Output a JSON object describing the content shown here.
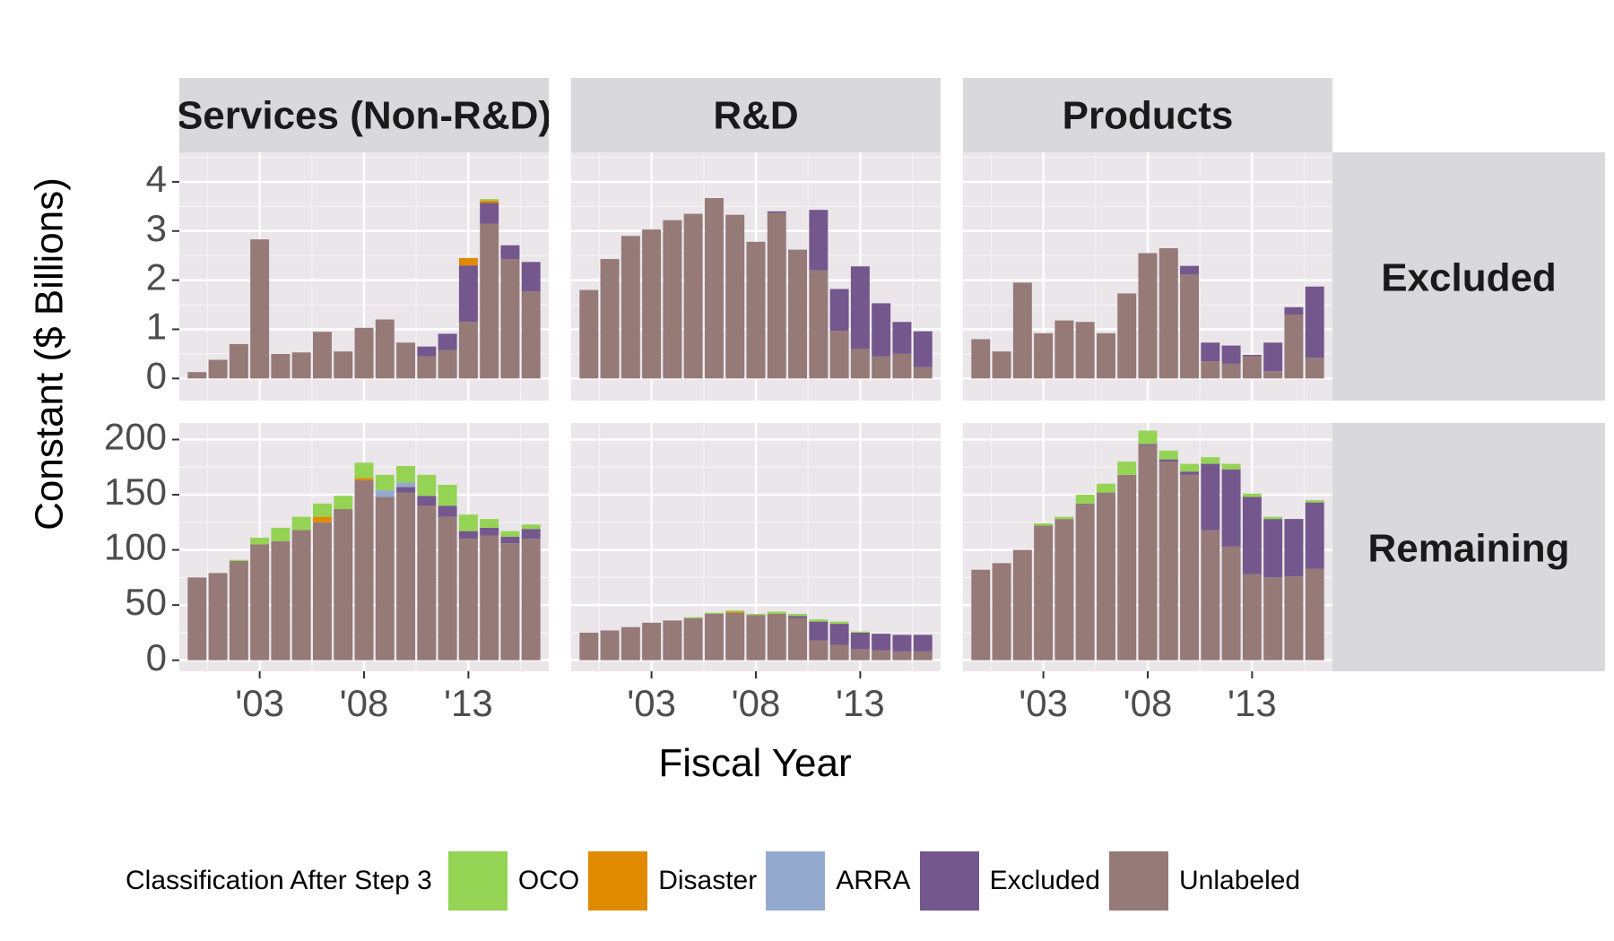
{
  "chart_data": {
    "type": "bar",
    "stacked": true,
    "xlabel": "Fiscal Year",
    "ylabel": "Constant ($ Billions)",
    "x_tick_labels": [
      "'03",
      "'08",
      "'13"
    ],
    "years": [
      2000,
      2001,
      2002,
      2003,
      2004,
      2005,
      2006,
      2007,
      2008,
      2009,
      2010,
      2011,
      2012,
      2013,
      2014,
      2015,
      2016
    ],
    "columns": [
      "Services (Non-R&D)",
      "R&D",
      "Products"
    ],
    "rows": [
      {
        "label": "Excluded",
        "yticks": [
          0,
          1,
          2,
          3,
          4
        ],
        "ylim": [
          -0.45,
          4.6
        ]
      },
      {
        "label": "Remaining",
        "yticks": [
          0,
          50,
          100,
          150,
          200
        ],
        "ylim": [
          -10,
          215
        ]
      }
    ],
    "legend": {
      "title": "Classification After Step 3",
      "placement": "bottom",
      "items": [
        {
          "name": "OCO",
          "color": "#95d354"
        },
        {
          "name": "Disaster",
          "color": "#e08a00"
        },
        {
          "name": "ARRA",
          "color": "#94aacf"
        },
        {
          "name": "Excluded",
          "color": "#74578c"
        },
        {
          "name": "Unlabeled",
          "color": "#957a78"
        }
      ]
    },
    "stack_order": [
      "Unlabeled",
      "Excluded",
      "ARRA",
      "Disaster",
      "OCO"
    ],
    "panels": [
      {
        "row": "Excluded",
        "column": "Services (Non-R&D)",
        "series": [
          {
            "name": "Unlabeled",
            "values": [
              0.13,
              0.38,
              0.7,
              2.83,
              0.5,
              0.53,
              0.95,
              0.55,
              1.03,
              1.2,
              0.73,
              0.45,
              0.58,
              1.15,
              3.15,
              2.43,
              1.77
            ]
          },
          {
            "name": "Excluded",
            "values": [
              0,
              0,
              0,
              0,
              0,
              0,
              0,
              0,
              0,
              0,
              0,
              0.2,
              0.33,
              1.15,
              0.42,
              0.28,
              0.6
            ]
          },
          {
            "name": "ARRA",
            "values": [
              0,
              0,
              0,
              0,
              0,
              0,
              0,
              0,
              0,
              0,
              0,
              0,
              0,
              0,
              0,
              0,
              0
            ]
          },
          {
            "name": "Disaster",
            "values": [
              0,
              0,
              0,
              0,
              0,
              0,
              0,
              0,
              0,
              0,
              0,
              0,
              0,
              0.15,
              0.05,
              0,
              0
            ]
          },
          {
            "name": "OCO",
            "values": [
              0,
              0,
              0,
              0,
              0,
              0,
              0,
              0,
              0,
              0,
              0,
              0,
              0,
              0,
              0.03,
              0,
              0
            ]
          }
        ]
      },
      {
        "row": "Excluded",
        "column": "R&D",
        "series": [
          {
            "name": "Unlabeled",
            "values": [
              1.8,
              2.43,
              2.9,
              3.03,
              3.22,
              3.35,
              3.67,
              3.33,
              2.78,
              3.37,
              2.62,
              2.2,
              0.97,
              0.6,
              0.45,
              0.5,
              0.23
            ]
          },
          {
            "name": "Excluded",
            "values": [
              0,
              0,
              0,
              0,
              0,
              0,
              0,
              0,
              0,
              0.03,
              0,
              1.23,
              0.85,
              1.68,
              1.08,
              0.65,
              0.73
            ]
          },
          {
            "name": "ARRA",
            "values": [
              0,
              0,
              0,
              0,
              0,
              0,
              0,
              0,
              0,
              0,
              0,
              0,
              0,
              0,
              0,
              0,
              0
            ]
          },
          {
            "name": "Disaster",
            "values": [
              0,
              0,
              0,
              0,
              0,
              0,
              0,
              0,
              0,
              0,
              0,
              0,
              0,
              0,
              0,
              0,
              0
            ]
          },
          {
            "name": "OCO",
            "values": [
              0,
              0,
              0,
              0,
              0,
              0,
              0,
              0,
              0,
              0,
              0,
              0,
              0,
              0,
              0,
              0,
              0
            ]
          }
        ]
      },
      {
        "row": "Excluded",
        "column": "Products",
        "series": [
          {
            "name": "Unlabeled",
            "values": [
              0.8,
              0.55,
              1.95,
              0.92,
              1.18,
              1.15,
              0.92,
              1.73,
              2.55,
              2.65,
              2.12,
              0.35,
              0.3,
              0.45,
              0.15,
              1.3,
              0.42
            ]
          },
          {
            "name": "Excluded",
            "values": [
              0,
              0,
              0,
              0,
              0,
              0,
              0,
              0,
              0,
              0,
              0.17,
              0.38,
              0.37,
              0.03,
              0.58,
              0.15,
              1.45
            ]
          },
          {
            "name": "ARRA",
            "values": [
              0,
              0,
              0,
              0,
              0,
              0,
              0,
              0,
              0,
              0,
              0,
              0,
              0,
              0,
              0,
              0,
              0
            ]
          },
          {
            "name": "Disaster",
            "values": [
              0,
              0,
              0,
              0,
              0,
              0,
              0,
              0,
              0,
              0,
              0,
              0,
              0,
              0,
              0,
              0,
              0
            ]
          },
          {
            "name": "OCO",
            "values": [
              0,
              0,
              0,
              0,
              0,
              0,
              0,
              0,
              0,
              0,
              0,
              0,
              0,
              0,
              0,
              0,
              0
            ]
          }
        ]
      },
      {
        "row": "Remaining",
        "column": "Services (Non-R&D)",
        "series": [
          {
            "name": "Unlabeled",
            "values": [
              75,
              79,
              90,
              105,
              108,
              118,
              125,
              137,
              163,
              148,
              152,
              140,
              130,
              110,
              113,
              106,
              110
            ]
          },
          {
            "name": "Excluded",
            "values": [
              0,
              0,
              0,
              0,
              0,
              0,
              0,
              0,
              0,
              0,
              5,
              9,
              10,
              7,
              7,
              6,
              9
            ]
          },
          {
            "name": "ARRA",
            "values": [
              0,
              0,
              0,
              0,
              0,
              0,
              0,
              0,
              0,
              6,
              4,
              0,
              0,
              0,
              0,
              0,
              0
            ]
          },
          {
            "name": "Disaster",
            "values": [
              0,
              0,
              0,
              0,
              0,
              0,
              5,
              0,
              2,
              0,
              0,
              0,
              0,
              0,
              0,
              0,
              0
            ]
          },
          {
            "name": "OCO",
            "values": [
              0,
              0,
              1,
              6,
              12,
              12,
              12,
              12,
              14,
              14,
              15,
              19,
              19,
              15,
              8,
              5,
              4
            ]
          }
        ]
      },
      {
        "row": "Remaining",
        "column": "R&D",
        "series": [
          {
            "name": "Unlabeled",
            "values": [
              25,
              27,
              30,
              34,
              36,
              38,
              42,
              43,
              41,
              42,
              38,
              18,
              14,
              10,
              9,
              8,
              8
            ]
          },
          {
            "name": "Excluded",
            "values": [
              0,
              0,
              0,
              0,
              0,
              0,
              0,
              0,
              0,
              0,
              2,
              17,
              19,
              15,
              15,
              15,
              15
            ]
          },
          {
            "name": "ARRA",
            "values": [
              0,
              0,
              0,
              0,
              0,
              0,
              0,
              0,
              0,
              0,
              0,
              0,
              0,
              0,
              0,
              0,
              0
            ]
          },
          {
            "name": "Disaster",
            "values": [
              0,
              0,
              0,
              0,
              0,
              0,
              0,
              1,
              0,
              0,
              0,
              0,
              0,
              0,
              0,
              0,
              0
            ]
          },
          {
            "name": "OCO",
            "values": [
              0,
              0,
              0,
              0,
              0,
              1,
              1,
              1,
              1,
              2,
              2,
              2,
              2,
              1,
              0,
              0,
              0
            ]
          }
        ]
      },
      {
        "row": "Remaining",
        "column": "Products",
        "series": [
          {
            "name": "Unlabeled",
            "values": [
              82,
              88,
              100,
              122,
              128,
              142,
              152,
              168,
              195,
              180,
              168,
              118,
              103,
              78,
              75,
              76,
              83
            ]
          },
          {
            "name": "Excluded",
            "values": [
              0,
              0,
              0,
              0,
              0,
              0,
              0,
              0,
              1,
              2,
              3,
              60,
              70,
              70,
              53,
              52,
              60
            ]
          },
          {
            "name": "ARRA",
            "values": [
              0,
              0,
              0,
              0,
              0,
              0,
              0,
              0,
              0,
              0,
              0,
              0,
              0,
              0,
              0,
              0,
              0
            ]
          },
          {
            "name": "Disaster",
            "values": [
              0,
              0,
              0,
              0,
              0,
              0,
              0,
              0,
              0,
              0,
              0,
              0,
              0,
              0,
              0,
              0,
              0
            ]
          },
          {
            "name": "OCO",
            "values": [
              0,
              0,
              0,
              2,
              2,
              8,
              8,
              12,
              12,
              8,
              7,
              6,
              5,
              3,
              2,
              0,
              2
            ]
          }
        ]
      }
    ]
  }
}
